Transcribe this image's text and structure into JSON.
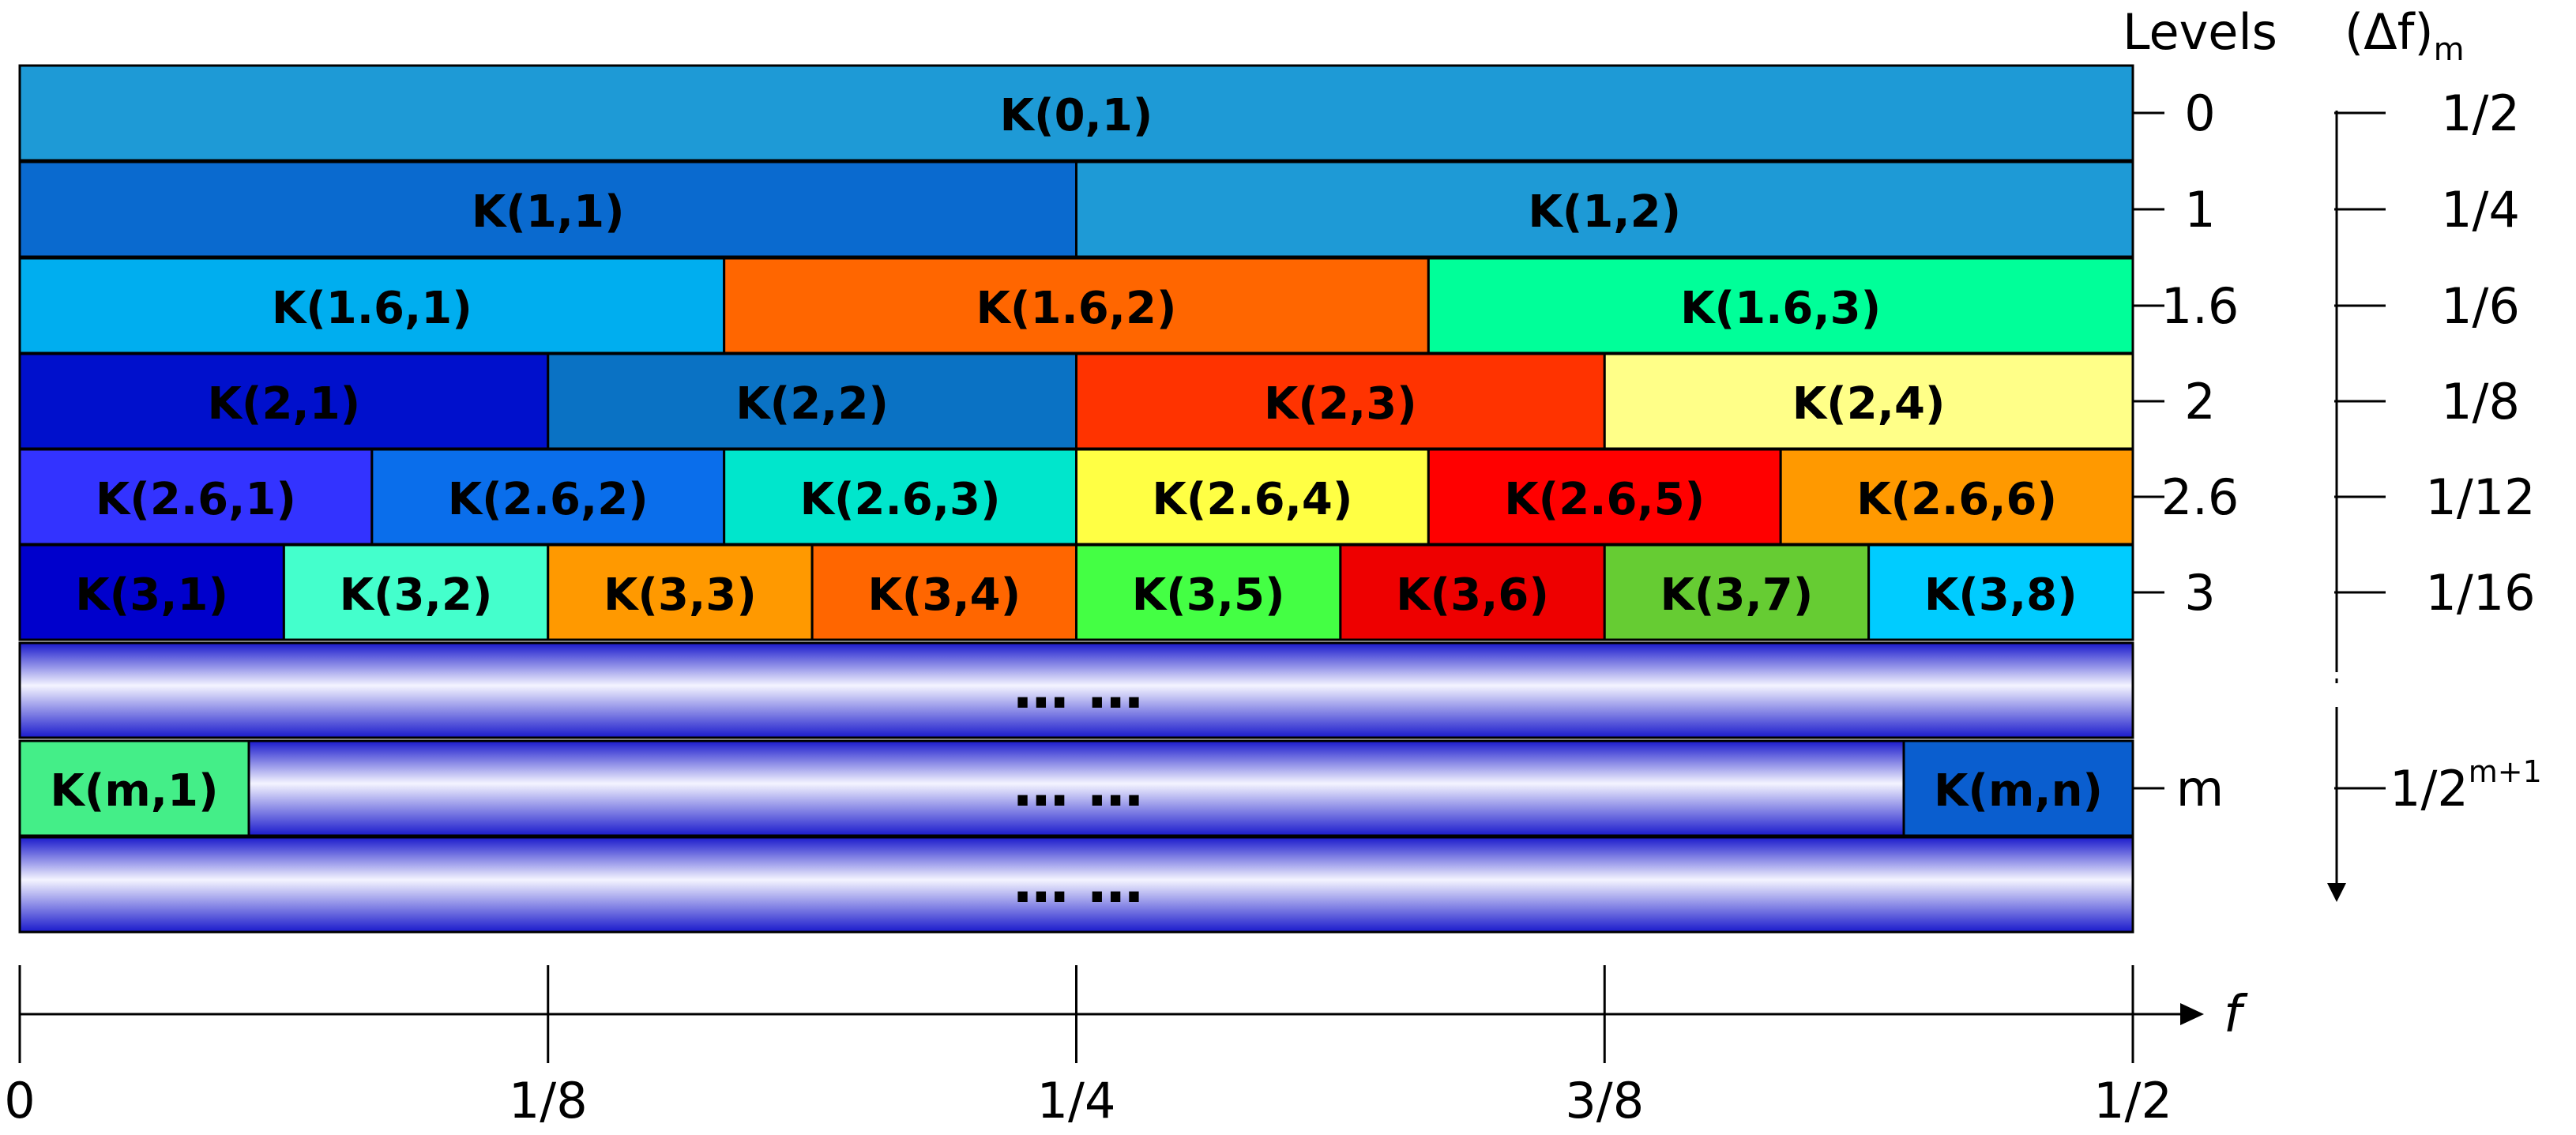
{
  "header": {
    "levels_label": "Levels",
    "delta_label": "(Δf)",
    "delta_subscript": "m"
  },
  "levels": [
    {
      "level": "0",
      "delta": "1/2",
      "cells": [
        {
          "label": "K(0,1)",
          "color": "#1E9AD6",
          "span": 1
        }
      ]
    },
    {
      "level": "1",
      "delta": "1/4",
      "cells": [
        {
          "label": "K(1,1)",
          "color": "#0A6ACF",
          "span": 1
        },
        {
          "label": "K(1,2)",
          "color": "#1E9AD6",
          "span": 1
        }
      ]
    },
    {
      "level": "1.6",
      "delta": "1/6",
      "cells": [
        {
          "label": "K(1.6,1)",
          "color": "#00AEEF",
          "span": 1
        },
        {
          "label": "K(1.6,2)",
          "color": "#FF6600",
          "span": 1
        },
        {
          "label": "K(1.6,3)",
          "color": "#00FF99",
          "span": 1
        }
      ]
    },
    {
      "level": "2",
      "delta": "1/8",
      "cells": [
        {
          "label": "K(2,1)",
          "color": "#0010CC",
          "span": 1
        },
        {
          "label": "K(2,2)",
          "color": "#0A72C4",
          "span": 1
        },
        {
          "label": "K(2,3)",
          "color": "#FF3300",
          "span": 1
        },
        {
          "label": "K(2,4)",
          "color": "#FFFF88",
          "span": 1
        }
      ]
    },
    {
      "level": "2.6",
      "delta": "1/12",
      "cells": [
        {
          "label": "K(2.6,1)",
          "color": "#3333FF",
          "span": 1
        },
        {
          "label": "K(2.6,2)",
          "color": "#0A6EEB",
          "span": 1
        },
        {
          "label": "K(2.6,3)",
          "color": "#00E6CC",
          "span": 1
        },
        {
          "label": "K(2.6,4)",
          "color": "#FFFF44",
          "span": 1
        },
        {
          "label": "K(2.6,5)",
          "color": "#FF0000",
          "span": 1
        },
        {
          "label": "K(2.6,6)",
          "color": "#FF9900",
          "span": 1
        }
      ]
    },
    {
      "level": "3",
      "delta": "1/16",
      "cells": [
        {
          "label": "K(3,1)",
          "color": "#0000CC",
          "span": 1
        },
        {
          "label": "K(3,2)",
          "color": "#44FFCC",
          "span": 1
        },
        {
          "label": "K(3,3)",
          "color": "#FF9900",
          "span": 1
        },
        {
          "label": "K(3,4)",
          "color": "#FF6600",
          "span": 1
        },
        {
          "label": "K(3,5)",
          "color": "#44FF44",
          "span": 1
        },
        {
          "label": "K(3,6)",
          "color": "#EE0000",
          "span": 1
        },
        {
          "label": "K(3,7)",
          "color": "#66CC33",
          "span": 1
        },
        {
          "label": "K(3,8)",
          "color": "#00CCFF",
          "span": 1
        }
      ]
    }
  ],
  "ellipsis_row_1": {
    "text": "…   …"
  },
  "level_m": {
    "level": "m",
    "delta_base": "1/2",
    "delta_superscript": "m+1",
    "first_cell": {
      "label": "K(m,1)",
      "color": "#44EE88"
    },
    "middle_text": "…   …",
    "last_cell": {
      "label": "K(m,n)",
      "color": "#0A5ECF"
    }
  },
  "ellipsis_row_2": {
    "text": "…   …"
  },
  "axis": {
    "label": "f",
    "ticks": [
      "0",
      "1/8",
      "1/4",
      "3/8",
      "1/2"
    ]
  },
  "colors": {
    "border": "#000000",
    "gradient_light": "#F4F4FF",
    "gradient_dark": "#1A1ACC"
  }
}
